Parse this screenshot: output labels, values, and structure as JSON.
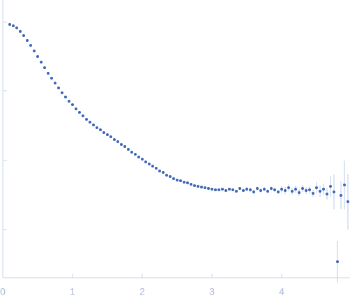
{
  "chart_data": {
    "type": "scatter",
    "x": [
      0.1,
      0.15,
      0.2,
      0.25,
      0.3,
      0.35,
      0.4,
      0.45,
      0.5,
      0.55,
      0.6,
      0.65,
      0.7,
      0.75,
      0.8,
      0.85,
      0.9,
      0.95,
      1.0,
      1.05,
      1.1,
      1.15,
      1.2,
      1.25,
      1.3,
      1.35,
      1.4,
      1.45,
      1.5,
      1.55,
      1.6,
      1.65,
      1.7,
      1.75,
      1.8,
      1.85,
      1.9,
      1.95,
      2.0,
      2.05,
      2.1,
      2.15,
      2.2,
      2.25,
      2.3,
      2.35,
      2.4,
      2.45,
      2.5,
      2.55,
      2.6,
      2.65,
      2.7,
      2.75,
      2.8,
      2.85,
      2.9,
      2.95,
      3.0,
      3.05,
      3.1,
      3.15,
      3.2,
      3.25,
      3.3,
      3.35,
      3.4,
      3.45,
      3.5,
      3.55,
      3.6,
      3.65,
      3.7,
      3.75,
      3.8,
      3.85,
      3.9,
      3.95,
      4.0,
      4.05,
      4.1,
      4.15,
      4.2,
      4.25,
      4.3,
      4.35,
      4.4,
      4.45,
      4.5,
      4.55,
      4.6,
      4.65,
      4.7,
      4.75,
      4.8,
      4.85,
      4.9,
      4.95
    ],
    "values": [
      3.63,
      3.61,
      3.58,
      3.53,
      3.47,
      3.4,
      3.33,
      3.25,
      3.17,
      3.09,
      3.01,
      2.93,
      2.86,
      2.79,
      2.72,
      2.65,
      2.59,
      2.53,
      2.48,
      2.42,
      2.37,
      2.32,
      2.27,
      2.23,
      2.19,
      2.15,
      2.12,
      2.08,
      2.05,
      2.02,
      1.98,
      1.95,
      1.91,
      1.88,
      1.84,
      1.8,
      1.77,
      1.73,
      1.7,
      1.66,
      1.63,
      1.6,
      1.57,
      1.53,
      1.51,
      1.47,
      1.45,
      1.42,
      1.4,
      1.39,
      1.37,
      1.36,
      1.34,
      1.32,
      1.31,
      1.3,
      1.29,
      1.28,
      1.27,
      1.26,
      1.26,
      1.27,
      1.25,
      1.27,
      1.26,
      1.24,
      1.28,
      1.25,
      1.27,
      1.26,
      1.23,
      1.28,
      1.25,
      1.27,
      1.24,
      1.28,
      1.26,
      1.23,
      1.27,
      1.25,
      1.29,
      1.24,
      1.27,
      1.22,
      1.28,
      1.25,
      1.26,
      1.21,
      1.29,
      1.24,
      1.27,
      1.2,
      1.31,
      1.23,
      0.23,
      1.18,
      1.33,
      1.09
    ],
    "errors": [
      0.01,
      0.01,
      0.01,
      0.01,
      0.01,
      0.01,
      0.01,
      0.01,
      0.01,
      0.01,
      0.01,
      0.01,
      0.01,
      0.01,
      0.01,
      0.01,
      0.01,
      0.01,
      0.01,
      0.01,
      0.01,
      0.01,
      0.01,
      0.01,
      0.01,
      0.01,
      0.01,
      0.01,
      0.01,
      0.01,
      0.01,
      0.01,
      0.01,
      0.01,
      0.01,
      0.01,
      0.01,
      0.01,
      0.01,
      0.01,
      0.01,
      0.01,
      0.01,
      0.01,
      0.01,
      0.01,
      0.01,
      0.01,
      0.02,
      0.02,
      0.02,
      0.02,
      0.02,
      0.02,
      0.02,
      0.02,
      0.02,
      0.02,
      0.02,
      0.02,
      0.02,
      0.02,
      0.02,
      0.02,
      0.02,
      0.02,
      0.02,
      0.02,
      0.03,
      0.03,
      0.03,
      0.03,
      0.03,
      0.03,
      0.03,
      0.03,
      0.03,
      0.03,
      0.05,
      0.05,
      0.05,
      0.05,
      0.05,
      0.05,
      0.05,
      0.05,
      0.05,
      0.05,
      0.08,
      0.08,
      0.08,
      0.08,
      0.15,
      0.25,
      0.3,
      0.2,
      0.35,
      0.4
    ],
    "color": "#3a66b5",
    "error_color": "#b9c9e8",
    "xlim": [
      0,
      4.98
    ],
    "xticks": [
      0,
      1,
      2,
      3,
      4
    ],
    "ylim": [
      0,
      3.98
    ],
    "yticks": [
      0.69,
      1.68,
      2.68,
      3.66
    ]
  }
}
